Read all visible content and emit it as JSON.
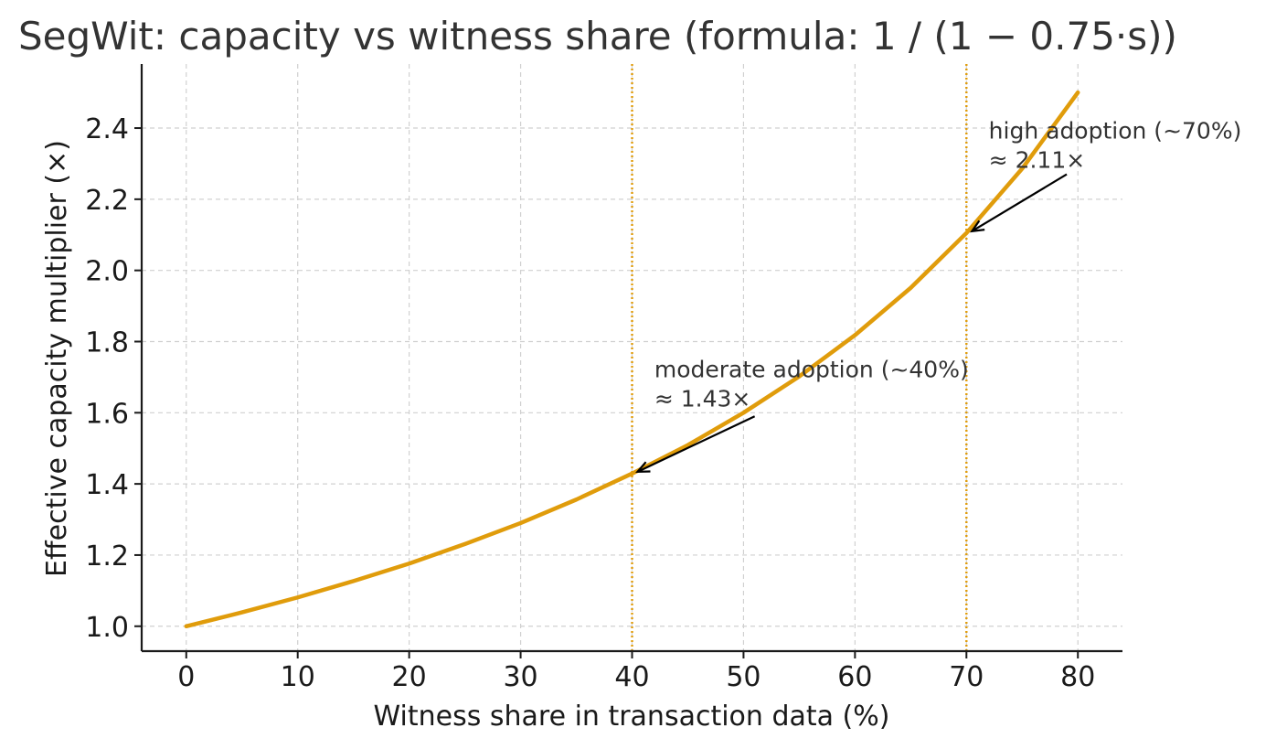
{
  "chart_data": {
    "type": "line",
    "title": "SegWit: capacity vs witness share (formula: 1 / (1 − 0.75·s))",
    "xlabel": "Witness share in transaction data (%)",
    "ylabel": "Effective capacity multiplier (×)",
    "xlim": [
      -4,
      84
    ],
    "ylim": [
      0.93,
      2.58
    ],
    "x_ticks": [
      0,
      10,
      20,
      30,
      40,
      50,
      60,
      70,
      80
    ],
    "x_tick_labels": [
      "0",
      "10",
      "20",
      "30",
      "40",
      "50",
      "60",
      "70",
      "80"
    ],
    "y_ticks": [
      1.0,
      1.2,
      1.4,
      1.6,
      1.8,
      2.0,
      2.2,
      2.4
    ],
    "y_tick_labels": [
      "1.0",
      "1.2",
      "1.4",
      "1.6",
      "1.8",
      "2.0",
      "2.2",
      "2.4"
    ],
    "grid": true,
    "series": [
      {
        "color": "#e09c0b",
        "x": [
          0,
          5,
          10,
          15,
          20,
          25,
          30,
          35,
          40,
          45,
          50,
          55,
          60,
          65,
          70,
          75,
          80
        ],
        "y": [
          1.0,
          1.039,
          1.081,
          1.127,
          1.176,
          1.231,
          1.29,
          1.356,
          1.429,
          1.509,
          1.6,
          1.702,
          1.818,
          1.951,
          2.105,
          2.286,
          2.5
        ]
      }
    ],
    "vertical_lines": [
      {
        "x": 40,
        "color": "#e09c0b"
      },
      {
        "x": 70,
        "color": "#e09c0b"
      }
    ],
    "annotations": [
      {
        "line1": "moderate adoption (~40%)",
        "line2": "≈ 1.43×",
        "point": [
          40,
          1.429
        ],
        "text_pos": [
          42,
          1.7
        ],
        "arrow_tail": [
          51,
          1.59
        ]
      },
      {
        "line1": "high adoption (~70%)",
        "line2": "≈ 2.11×",
        "point": [
          70,
          2.105
        ],
        "text_pos": [
          72,
          2.37
        ],
        "arrow_tail": [
          79,
          2.27
        ]
      }
    ]
  }
}
